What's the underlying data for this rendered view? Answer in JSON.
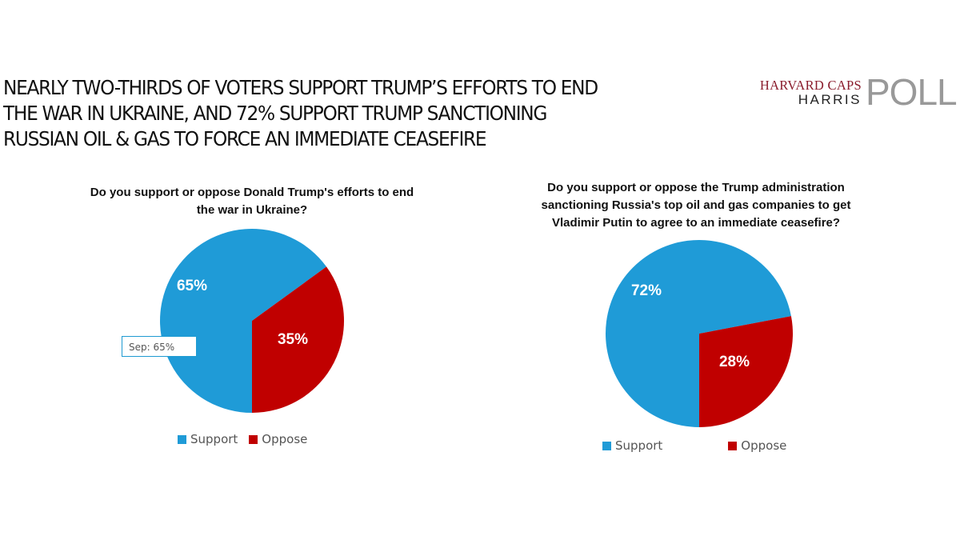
{
  "headline": {
    "line1": "NEARLY TWO-THIRDS OF VOTERS SUPPORT TRUMP’S EFFORTS TO END",
    "line2": "THE WAR IN UKRAINE, AND 72% SUPPORT TRUMP SANCTIONING",
    "line3": "RUSSIAN OIL & GAS TO FORCE AN IMMEDIATE CEASEFIRE"
  },
  "logo": {
    "line1": "HARVARD CAPS",
    "line2": "HARRIS",
    "mark": "POLL"
  },
  "colors": {
    "support": "#1f9bd7",
    "oppose": "#c00000"
  },
  "chart_data": [
    {
      "type": "pie",
      "title_line1": "Do you support or oppose Donald Trump's efforts to end",
      "title_line2": "the war in Ukraine?",
      "categories": [
        "Support",
        "Oppose"
      ],
      "values": [
        65,
        35
      ],
      "labels": [
        "65%",
        "35%"
      ],
      "legend": [
        "Support",
        "Oppose"
      ],
      "legend_position": "bottom",
      "tooltip": "Sep: 65%"
    },
    {
      "type": "pie",
      "title_line1": "Do you support or oppose the Trump administration",
      "title_line2": "sanctioning Russia's top oil and gas companies to get",
      "title_line3": "Vladimir Putin to agree to an immediate ceasefire?",
      "categories": [
        "Support",
        "Oppose"
      ],
      "values": [
        72,
        28
      ],
      "labels": [
        "72%",
        "28%"
      ],
      "legend": [
        "Support",
        "Oppose"
      ],
      "legend_position": "bottom"
    }
  ]
}
